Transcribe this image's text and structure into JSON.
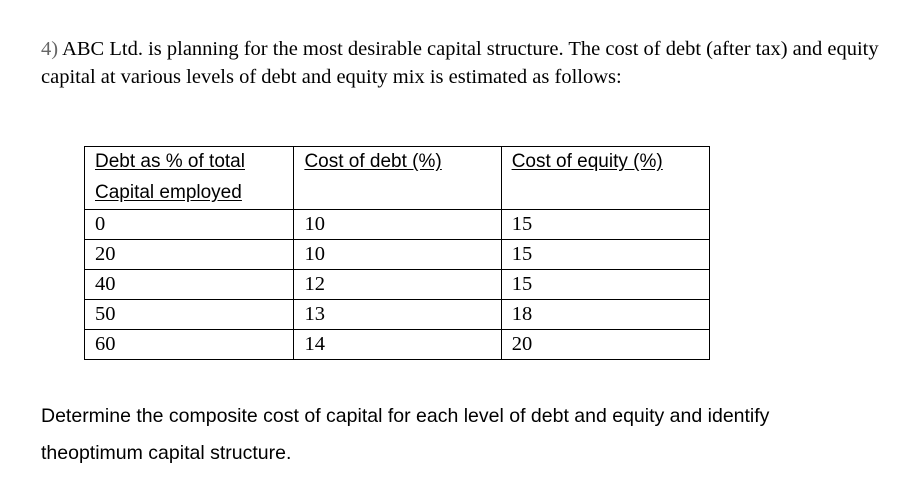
{
  "intro": {
    "number": "4)",
    "text": "ABC Ltd. is planning for the most desirable capital structure. The cost of debt (after tax) and equity capital at various levels of debt and equity mix is estimated as follows:"
  },
  "table": {
    "headers": {
      "debt_line1": "Debt as % of total",
      "debt_line2": "Capital employed",
      "cost_of_debt": "Cost of debt (%)",
      "cost_of_equity": "Cost of equity (%)"
    },
    "rows": [
      [
        "0",
        "10",
        "15"
      ],
      [
        "20",
        "10",
        "15"
      ],
      [
        "40",
        "12",
        "15"
      ],
      [
        "50",
        "13",
        "18"
      ],
      [
        "60",
        "14",
        "20"
      ]
    ]
  },
  "question": {
    "line1": "Determine the composite cost of capital for each level of debt and equity and identify",
    "line2": "theoptimum capital structure."
  }
}
